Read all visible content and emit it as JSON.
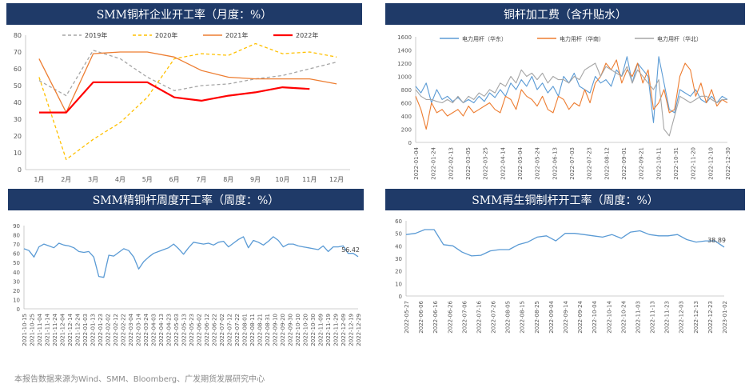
{
  "footnote": "本报告数据来源为Wind、SMM、Bloomberg、广发期货发展研究中心",
  "colors": {
    "header_bg": "#1f3a68",
    "gray": "#a6a6a6",
    "yellow": "#ffc000",
    "orange": "#ed7d31",
    "red": "#ff0000",
    "blue": "#5b9bd5",
    "axis": "#595959"
  },
  "chart_data": [
    {
      "id": "monthly",
      "type": "line",
      "title": "SMM铜杆企业开工率（月度：%）",
      "categories": [
        "1月",
        "2月",
        "3月",
        "4月",
        "5月",
        "6月",
        "7月",
        "8月",
        "9月",
        "10月",
        "11月",
        "12月"
      ],
      "ylim": [
        0,
        80
      ],
      "yticks": [
        0,
        10,
        20,
        30,
        40,
        50,
        60,
        70,
        80
      ],
      "legend_position": "top",
      "series": [
        {
          "name": "2019年",
          "color": "#a6a6a6",
          "dash": "dashed",
          "values": [
            53,
            44,
            71,
            66,
            55,
            47,
            50,
            51,
            54,
            56,
            60,
            64
          ]
        },
        {
          "name": "2020年",
          "color": "#ffc000",
          "dash": "dashed",
          "values": [
            55,
            6,
            18,
            28,
            43,
            66,
            69,
            68,
            75,
            69,
            70,
            67
          ]
        },
        {
          "name": "2021年",
          "color": "#ed7d31",
          "dash": "solid",
          "values": [
            66,
            34,
            69,
            70,
            70,
            67,
            59,
            55,
            54,
            54,
            54,
            51
          ]
        },
        {
          "name": "2022年",
          "color": "#ff0000",
          "dash": "solid",
          "values": [
            34,
            34,
            52,
            52,
            52,
            43,
            41,
            44,
            46,
            49,
            48,
            null
          ]
        }
      ]
    },
    {
      "id": "processing",
      "type": "line",
      "title": "铜杆加工费（含升贴水）",
      "ylim": [
        0,
        1600
      ],
      "yticks": [
        0,
        200,
        400,
        600,
        800,
        1000,
        1200,
        1400,
        1600
      ],
      "legend_position": "top",
      "x_labels": [
        "2022-01-04",
        "2022-01-24",
        "2022-02-13",
        "2022-03-05",
        "2022-03-25",
        "2022-04-14",
        "2022-05-04",
        "2022-05-24",
        "2022-06-13",
        "2022-07-03",
        "2022-07-23",
        "2022-08-12",
        "2022-09-01",
        "2022-09-21",
        "2022-10-11",
        "2022-10-31",
        "2022-11-20",
        "2022-12-10",
        "2022-12-30"
      ],
      "series": [
        {
          "name": "电力用杆（华东）",
          "color": "#5b9bd5",
          "values": [
            850,
            750,
            900,
            600,
            800,
            650,
            700,
            620,
            680,
            600,
            650,
            600,
            700,
            620,
            750,
            680,
            800,
            700,
            900,
            800,
            950,
            850,
            1000,
            800,
            900,
            750,
            850,
            700,
            1000,
            900,
            1050,
            850,
            800,
            750,
            1000,
            900,
            950,
            850,
            1100,
            1000,
            1300,
            900,
            1200,
            1100,
            1000,
            300,
            1300,
            900,
            500,
            450,
            800,
            750,
            700,
            800,
            650,
            600,
            700,
            600,
            700,
            650
          ]
        },
        {
          "name": "电力用杆（华南）",
          "color": "#ed7d31",
          "values": [
            700,
            500,
            200,
            600,
            450,
            500,
            400,
            450,
            500,
            400,
            550,
            450,
            500,
            550,
            600,
            500,
            450,
            700,
            650,
            500,
            800,
            700,
            650,
            550,
            700,
            500,
            450,
            700,
            650,
            500,
            600,
            550,
            800,
            600,
            900,
            1000,
            1200,
            1100,
            1250,
            900,
            1100,
            1000,
            1200,
            900,
            1100,
            500,
            600,
            800,
            450,
            500,
            1000,
            1200,
            1100,
            700,
            900,
            600,
            800,
            550,
            650,
            600
          ]
        },
        {
          "name": "电力用杆（华北）",
          "color": "#a6a6a6",
          "values": [
            800,
            700,
            650,
            650,
            620,
            600,
            650,
            600,
            700,
            600,
            700,
            650,
            750,
            700,
            800,
            750,
            900,
            850,
            1000,
            900,
            1100,
            1000,
            1050,
            950,
            1050,
            900,
            1000,
            950,
            950,
            900,
            1000,
            950,
            1100,
            1150,
            1200,
            1000,
            1150,
            1100,
            1050,
            1000,
            1150,
            900,
            1100,
            1000,
            900,
            800,
            950,
            200,
            100,
            400,
            700,
            650,
            600,
            650,
            700,
            700,
            650,
            600,
            650,
            650
          ]
        }
      ]
    },
    {
      "id": "weekly",
      "type": "line",
      "title": "SMM精铜杆周度开工率（周度：%）",
      "ylim": [
        0,
        90
      ],
      "yticks": [
        0,
        10,
        20,
        30,
        40,
        50,
        60,
        70,
        80,
        90
      ],
      "x_labels": [
        "2021-10-15",
        "2021-10-25",
        "2021-11-04",
        "2021-11-14",
        "2021-11-24",
        "2021-12-04",
        "2021-12-14",
        "2021-12-24",
        "2022-01-03",
        "2022-01-13",
        "2022-01-23",
        "2022-02-02",
        "2022-02-12",
        "2022-02-22",
        "2022-03-04",
        "2022-03-14",
        "2022-03-24",
        "2022-04-03",
        "2022-04-13",
        "2022-04-23",
        "2022-05-03",
        "2022-05-13",
        "2022-05-23",
        "2022-06-02",
        "2022-06-12",
        "2022-06-22",
        "2022-07-02",
        "2022-07-12",
        "2022-07-22",
        "2022-08-01",
        "2022-08-11",
        "2022-08-21",
        "2022-08-31",
        "2022-09-10",
        "2022-09-20",
        "2022-09-30",
        "2022-10-10",
        "2022-10-20",
        "2022-10-30",
        "2022-11-09",
        "2022-11-19",
        "2022-11-29",
        "2022-12-09",
        "2022-12-19",
        "2022-12-29"
      ],
      "series": [
        {
          "name": "",
          "color": "#5b9bd5",
          "values": [
            65,
            63,
            56,
            67,
            70,
            68,
            66,
            71,
            69,
            68,
            66,
            62,
            61,
            62,
            56,
            35,
            34,
            58,
            57,
            61,
            65,
            63,
            56,
            43,
            51,
            56,
            60,
            62,
            64,
            66,
            70,
            65,
            59,
            66,
            72,
            71,
            70,
            71,
            69,
            72,
            73,
            67,
            71,
            75,
            78,
            66,
            74,
            72,
            69,
            73,
            78,
            74,
            67,
            70,
            70,
            68,
            67,
            66,
            65,
            64,
            68,
            62,
            67,
            67,
            68,
            60,
            60,
            56.42
          ]
        }
      ],
      "last_label": "56.42"
    },
    {
      "id": "recycled",
      "type": "line",
      "title": "SMM再生铜制杆开工率（周度：%）",
      "ylim": [
        0,
        60
      ],
      "yticks": [
        0,
        10,
        20,
        30,
        40,
        50,
        60
      ],
      "x_labels": [
        "2022-05-27",
        "2022-06-06",
        "2022-06-16",
        "2022-06-26",
        "2022-07-06",
        "2022-07-16",
        "2022-07-26",
        "2022-08-05",
        "2022-08-15",
        "2022-08-25",
        "2022-09-04",
        "2022-09-14",
        "2022-09-24",
        "2022-10-04",
        "2022-10-14",
        "2022-10-24",
        "2022-11-03",
        "2022-11-13",
        "2022-11-23",
        "2022-12-03",
        "2022-12-13",
        "2022-12-23",
        "2023-01-02"
      ],
      "series": [
        {
          "name": "",
          "color": "#5b9bd5",
          "values": [
            49,
            50,
            53,
            53,
            41,
            40,
            35,
            32,
            32.5,
            36,
            37,
            37,
            41,
            43,
            47,
            48,
            44,
            50,
            50,
            49,
            48,
            47,
            49,
            46,
            51,
            52,
            49,
            48,
            48,
            49,
            45,
            43,
            44,
            44,
            39
          ]
        }
      ],
      "last_label": "38.89"
    }
  ]
}
